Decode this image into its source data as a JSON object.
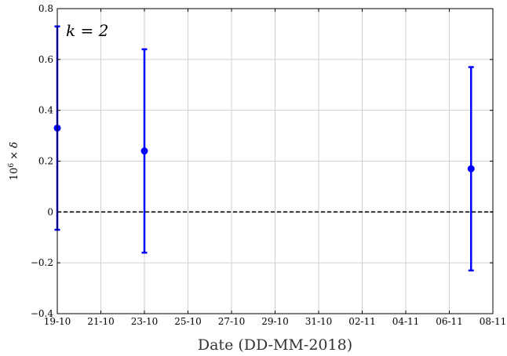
{
  "chart_data": {
    "type": "scatter",
    "title": "",
    "xlabel": "Date (DD-MM-2018)",
    "ylabel": "10^6 × δ",
    "annotation": "k = 2",
    "x_tick_labels": [
      "19-10",
      "21-10",
      "23-10",
      "25-10",
      "27-10",
      "29-10",
      "31-10",
      "02-11",
      "04-11",
      "06-11",
      "08-11"
    ],
    "x_tick_dates": [
      "2018-10-19",
      "2018-10-21",
      "2018-10-23",
      "2018-10-25",
      "2018-10-27",
      "2018-10-29",
      "2018-10-31",
      "2018-11-02",
      "2018-11-04",
      "2018-11-06",
      "2018-11-08"
    ],
    "xlim": [
      "2018-10-19",
      "2018-11-08"
    ],
    "y_tick_labels": [
      "−0.4",
      "−0.2",
      "0",
      "0.2",
      "0.4",
      "0.6",
      "0.8"
    ],
    "y_ticks": [
      -0.4,
      -0.2,
      0,
      0.2,
      0.4,
      0.6,
      0.8
    ],
    "ylim": [
      -0.4,
      0.8
    ],
    "grid": true,
    "reference_line": {
      "y": 0,
      "style": "dashed",
      "color": "#000000"
    },
    "series": [
      {
        "color": "#0000ff",
        "points": [
          {
            "x": "2018-10-19",
            "y": 0.33,
            "lower": -0.07,
            "upper": 0.73
          },
          {
            "x": "2018-10-23",
            "y": 0.24,
            "lower": -0.16,
            "upper": 0.64
          },
          {
            "x": "2018-11-07",
            "y": 0.17,
            "lower": -0.23,
            "upper": 0.57
          }
        ]
      }
    ]
  }
}
